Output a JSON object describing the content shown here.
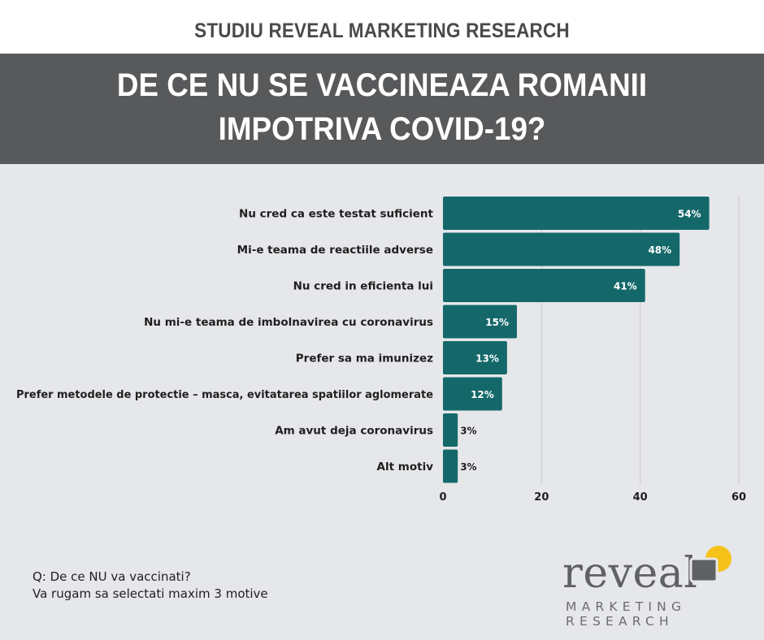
{
  "header": {
    "study_title": "STUDIU REVEAL MARKETING RESEARCH",
    "title_line1": "DE CE NU SE VACCINEAZA ROMANII",
    "title_line2": "IMPOTRIVA COVID-19?"
  },
  "chart_data": {
    "type": "bar",
    "orientation": "horizontal",
    "categories": [
      "Nu cred ca este testat suficient",
      "Mi-e teama de reactiile adverse",
      "Nu cred in eficienta lui",
      "Nu mi-e teama de imbolnavirea cu coronavirus",
      "Prefer sa ma imunizez",
      "Prefer metodele de protectie – masca, evitatarea spatiilor aglomerate",
      "Am avut deja coronavirus",
      "Alt motiv"
    ],
    "values": [
      54,
      48,
      41,
      15,
      13,
      12,
      3,
      3
    ],
    "data_labels": [
      "54%",
      "48%",
      "41%",
      "15%",
      "13%",
      "12%",
      "3%",
      "3%"
    ],
    "xlim": [
      0,
      60
    ],
    "xticks": [
      0,
      20,
      40,
      60
    ],
    "grid": true,
    "bar_color": "#14686a",
    "title": "",
    "xlabel": "",
    "ylabel": ""
  },
  "question": {
    "line1": "Q: De ce NU va vaccinati?",
    "line2": "Va rugam sa selectati maxim 3 motive"
  },
  "logo": {
    "word": "reveal",
    "line1": "MARKETING",
    "line2": "RESEARCH",
    "accent_color": "#f6c21a",
    "gray_color": "#606163"
  }
}
